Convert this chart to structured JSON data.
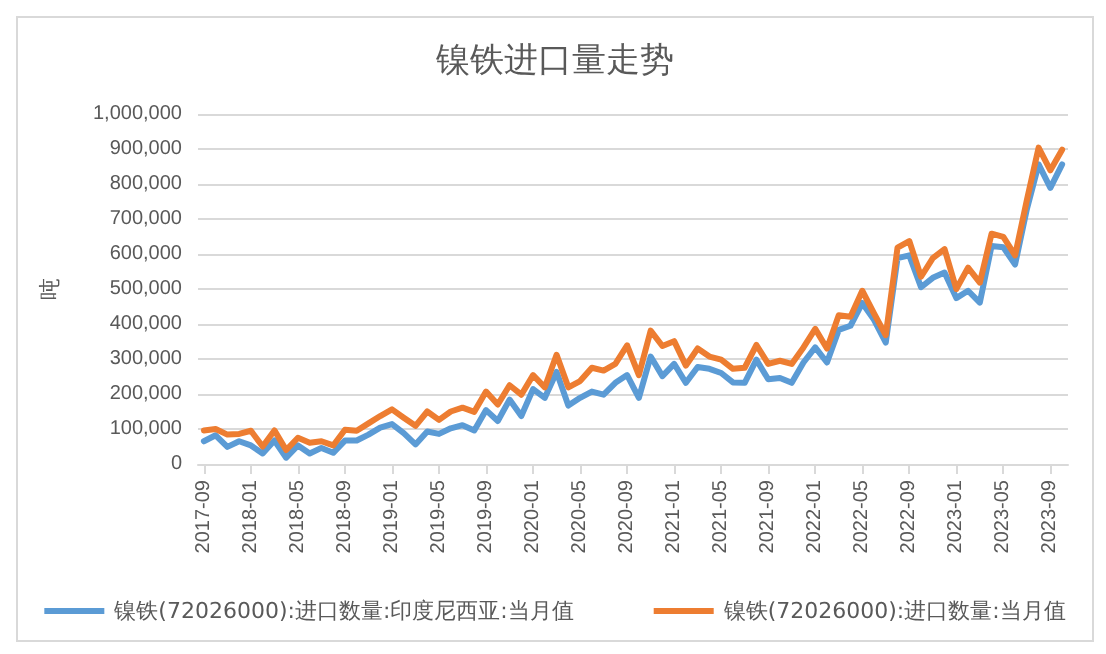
{
  "chart_data": {
    "type": "line",
    "title": "镍铁进口量走势",
    "ylabel": "吨",
    "categories": [
      "2017-09",
      null,
      null,
      null,
      "2018-01",
      null,
      null,
      null,
      "2018-05",
      null,
      null,
      null,
      "2018-09",
      null,
      null,
      null,
      "2019-01",
      null,
      null,
      null,
      "2019-05",
      null,
      null,
      null,
      "2019-09",
      null,
      null,
      null,
      "2020-01",
      null,
      null,
      null,
      "2020-05",
      null,
      null,
      null,
      "2020-09",
      null,
      null,
      null,
      "2021-01",
      null,
      null,
      null,
      "2021-05",
      null,
      null,
      null,
      "2021-09",
      null,
      null,
      null,
      "2022-01",
      null,
      null,
      null,
      "2022-05",
      null,
      null,
      null,
      "2022-09",
      null,
      null,
      null,
      "2023-01",
      null,
      null,
      null,
      "2023-05",
      null,
      null,
      null,
      "2023-09",
      null
    ],
    "series": [
      {
        "name": "镍铁(72026000):进口数量:印度尼西亚:当月值",
        "color": "#5b9bd5",
        "values": [
          65000,
          82000,
          49000,
          65000,
          53000,
          30000,
          67000,
          18000,
          53000,
          30000,
          46000,
          32000,
          67000,
          67000,
          84000,
          104000,
          114000,
          88000,
          56000,
          93000,
          86000,
          102000,
          111000,
          96000,
          154000,
          123000,
          184000,
          137000,
          214000,
          189000,
          263000,
          167000,
          189000,
          207000,
          198000,
          232000,
          254000,
          189000,
          307000,
          251000,
          286000,
          232000,
          277000,
          272000,
          260000,
          233000,
          232000,
          298000,
          242000,
          246000,
          232000,
          290000,
          333000,
          290000,
          383000,
          395000,
          460000,
          412000,
          347000,
          588000,
          596000,
          505000,
          532000,
          547000,
          474000,
          495000,
          461000,
          623000,
          619000,
          570000,
          728000,
          856000,
          789000,
          856000
        ]
      },
      {
        "name": "镍铁(72026000):进口数量:当月值",
        "color": "#ed7d31",
        "values": [
          96000,
          100000,
          84000,
          86000,
          95000,
          50000,
          96000,
          40000,
          75000,
          61000,
          65000,
          53000,
          98000,
          95000,
          116000,
          137000,
          156000,
          132000,
          109000,
          150000,
          126000,
          150000,
          161000,
          149000,
          207000,
          170000,
          225000,
          198000,
          254000,
          219000,
          312000,
          219000,
          237000,
          275000,
          267000,
          286000,
          339000,
          254000,
          381000,
          337000,
          351000,
          281000,
          330000,
          307000,
          298000,
          272000,
          275000,
          340000,
          286000,
          295000,
          286000,
          333000,
          386000,
          330000,
          425000,
          421000,
          495000,
          430000,
          368000,
          618000,
          637000,
          535000,
          588000,
          614000,
          500000,
          561000,
          518000,
          658000,
          649000,
          596000,
          754000,
          904000,
          839000,
          898000
        ]
      }
    ],
    "ylim": [
      0,
      1000000
    ],
    "yticks": [
      {
        "value": 0,
        "label": "0"
      },
      {
        "value": 100000,
        "label": "100,000"
      },
      {
        "value": 200000,
        "label": "200,000"
      },
      {
        "value": 300000,
        "label": "300,000"
      },
      {
        "value": 400000,
        "label": "400,000"
      },
      {
        "value": 500000,
        "label": "500,000"
      },
      {
        "value": 600000,
        "label": "600,000"
      },
      {
        "value": 700000,
        "label": "700,000"
      },
      {
        "value": 800000,
        "label": "800,000"
      },
      {
        "value": 900000,
        "label": "900,000"
      },
      {
        "value": 1000000,
        "label": "1,000,000"
      }
    ],
    "grid": "y",
    "legend": "bottom",
    "marker": "none",
    "line_style": "solid"
  }
}
